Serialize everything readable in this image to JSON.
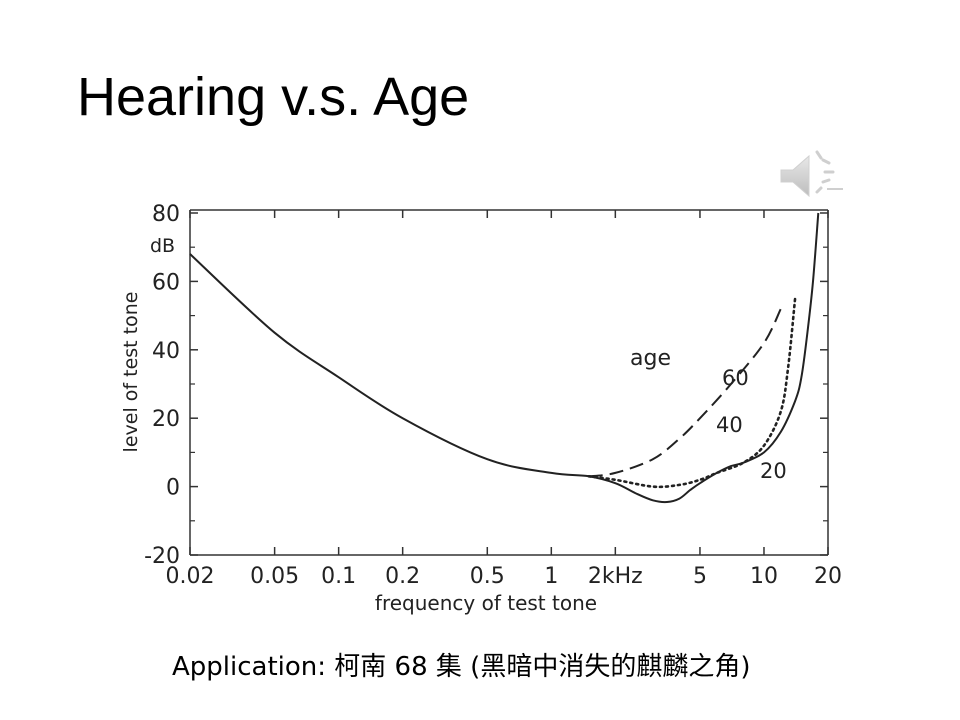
{
  "slide": {
    "title": "Hearing v.s. Age",
    "caption": "Application: 柯南 68 集 (黑暗中消失的麒麟之角)",
    "speaker_icon": "speaker-icon"
  },
  "chart_data": {
    "type": "line",
    "xlabel": "frequency of test tone",
    "ylabel": "level of test tone",
    "yunit": "dB",
    "x_scale": "log",
    "xlim": [
      0.02,
      20
    ],
    "ylim": [
      -20,
      80
    ],
    "x_ticks": [
      {
        "value": 0.02,
        "label": "0.02"
      },
      {
        "value": 0.05,
        "label": "0.05"
      },
      {
        "value": 0.1,
        "label": "0.1"
      },
      {
        "value": 0.2,
        "label": "0.2"
      },
      {
        "value": 0.5,
        "label": "0.5"
      },
      {
        "value": 1,
        "label": "1"
      },
      {
        "value": 2,
        "label": "2kHz"
      },
      {
        "value": 5,
        "label": "5"
      },
      {
        "value": 10,
        "label": "10"
      },
      {
        "value": 20,
        "label": "20"
      }
    ],
    "y_ticks": [
      {
        "value": 80,
        "label": "80"
      },
      {
        "value": 60,
        "label": "60"
      },
      {
        "value": 40,
        "label": "40"
      },
      {
        "value": 20,
        "label": "20"
      },
      {
        "value": 0,
        "label": "0"
      },
      {
        "value": -20,
        "label": "-20"
      }
    ],
    "legend_title": "age",
    "series": [
      {
        "name": "20",
        "style": "solid",
        "x": [
          0.02,
          0.05,
          0.1,
          0.2,
          0.5,
          1,
          1.5,
          2,
          2.5,
          3,
          3.5,
          4,
          4.5,
          5,
          6,
          7,
          8,
          10,
          12,
          14,
          15,
          16,
          17,
          18
        ],
        "y": [
          68,
          45,
          32,
          20,
          8,
          4,
          3,
          1,
          -2,
          -4,
          -4.5,
          -3.5,
          -1,
          1,
          4,
          6,
          7,
          10,
          16,
          25,
          32,
          45,
          60,
          80
        ]
      },
      {
        "name": "40",
        "style": "dotted",
        "x": [
          1.5,
          2,
          3,
          4,
          5,
          6,
          8,
          10,
          12,
          13,
          14
        ],
        "y": [
          3,
          2,
          0,
          0.5,
          2,
          4,
          7,
          12,
          22,
          35,
          55
        ]
      },
      {
        "name": "60",
        "style": "dashed",
        "x": [
          1.5,
          2,
          3,
          4,
          5,
          7,
          10,
          12
        ],
        "y": [
          3,
          4,
          8,
          14,
          20,
          30,
          42,
          52
        ]
      }
    ]
  }
}
